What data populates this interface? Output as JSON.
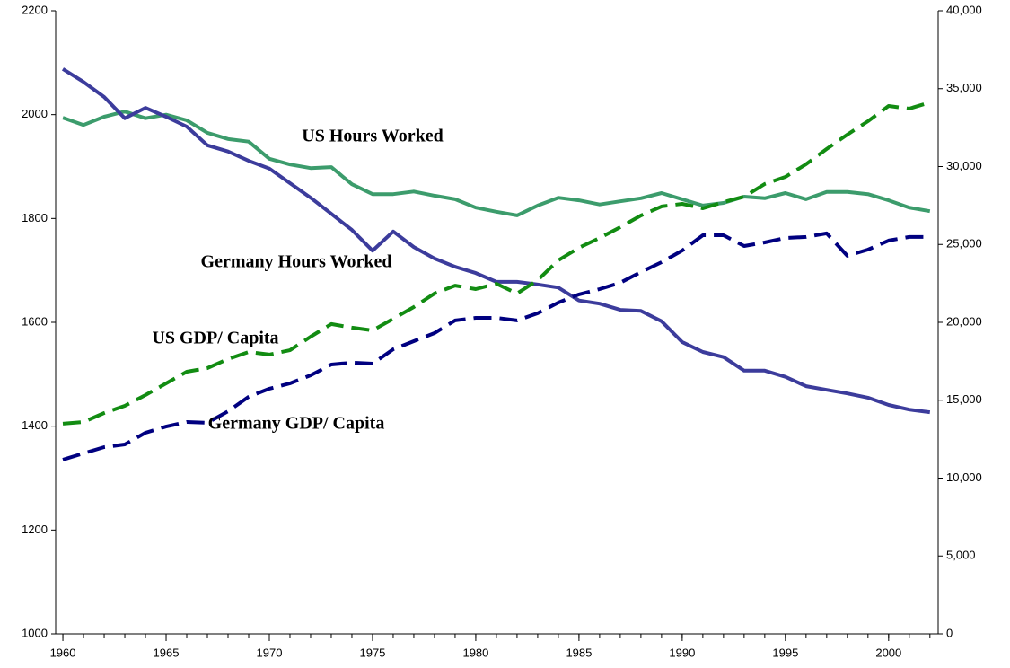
{
  "chart_data": {
    "type": "line",
    "annotations": [
      "US Hours Worked",
      "Germany Hours Worked",
      "US GDP/ Capita",
      "Germany GDP/ Capita"
    ],
    "x": [
      1960,
      1961,
      1962,
      1963,
      1964,
      1965,
      1966,
      1967,
      1968,
      1969,
      1970,
      1971,
      1972,
      1973,
      1974,
      1975,
      1976,
      1977,
      1978,
      1979,
      1980,
      1981,
      1982,
      1983,
      1984,
      1985,
      1986,
      1987,
      1988,
      1989,
      1990,
      1991,
      1992,
      1993,
      1994,
      1995,
      1996,
      1997,
      1998,
      1999,
      2000,
      2001,
      2002
    ],
    "xlim": [
      1959.65,
      2002.4
    ],
    "xticks": [
      1960,
      1965,
      1970,
      1975,
      1980,
      1985,
      1990,
      1995,
      2000
    ],
    "ylim": [
      1000,
      2200
    ],
    "yticks": [
      1000,
      1200,
      1400,
      1600,
      1800,
      2000,
      2200
    ],
    "y2lim": [
      0,
      40000
    ],
    "y2ticks": [
      0,
      {
        "value": 5000,
        "label": "5,000"
      },
      {
        "value": 10000,
        "label": "10,000"
      },
      {
        "value": 15000,
        "label": "15,000"
      },
      {
        "value": 20000,
        "label": "20,000"
      },
      {
        "value": 25000,
        "label": "25,000"
      },
      {
        "value": 30000,
        "label": "30,000"
      },
      {
        "value": 35000,
        "label": "35,000"
      },
      {
        "value": 40000,
        "label": "40,000"
      }
    ],
    "series": [
      {
        "name": "US Hours Worked",
        "color": "#3c9c6c",
        "dashed": false,
        "values": [
          1994,
          1980,
          1996,
          2006,
          1993,
          2000,
          1989,
          1965,
          1953,
          1948,
          1915,
          1904,
          1897,
          1899,
          1866,
          1847,
          1847,
          1852,
          1844,
          1837,
          1821,
          1813,
          1806,
          1825,
          1840,
          1835,
          1827,
          1833,
          1839,
          1849,
          1837,
          1825,
          1830,
          1842,
          1839,
          1849,
          1837,
          1851,
          1851,
          1847,
          1835,
          1821,
          1814
        ]
      },
      {
        "name": "Germany Hours Worked",
        "color": "#3c3c9c",
        "dashed": false,
        "values": [
          2088,
          2063,
          2034,
          1993,
          2013,
          1996,
          1977,
          1941,
          1929,
          1911,
          1896,
          1868,
          1840,
          1809,
          1778,
          1738,
          1775,
          1745,
          1723,
          1707,
          1695,
          1678,
          1678,
          1673,
          1667,
          1642,
          1636,
          1624,
          1622,
          1602,
          1562,
          1543,
          1533,
          1507,
          1507,
          1495,
          1477,
          1470,
          1463,
          1455,
          1441,
          1432,
          1427
        ]
      },
      {
        "name": "US GDP/ Capita",
        "color": "#128c12",
        "dashed": true,
        "axis": "y2",
        "values": [
          13490,
          13600,
          14180,
          14640,
          15330,
          16080,
          16830,
          17060,
          17640,
          18100,
          17930,
          18210,
          19080,
          19890,
          19660,
          19480,
          20230,
          20980,
          21850,
          22360,
          22130,
          22480,
          21850,
          22710,
          23980,
          24790,
          25420,
          26110,
          26860,
          27440,
          27610,
          27320,
          27720,
          28070,
          28880,
          29340,
          30150,
          31130,
          32050,
          32910,
          33890,
          33720,
          34120
        ]
      },
      {
        "name": "Germany GDP/ Capita",
        "color": "#000080",
        "dashed": true,
        "axis": "y2",
        "values": [
          11180,
          11590,
          11990,
          12160,
          12910,
          13310,
          13600,
          13550,
          14290,
          15220,
          15740,
          16080,
          16600,
          17290,
          17410,
          17350,
          18270,
          18790,
          19310,
          20120,
          20290,
          20290,
          20120,
          20580,
          21270,
          21790,
          22130,
          22540,
          23230,
          23860,
          24610,
          25590,
          25590,
          24900,
          25130,
          25420,
          25480,
          25710,
          24270,
          24670,
          25250,
          25480,
          25480
        ]
      }
    ]
  }
}
